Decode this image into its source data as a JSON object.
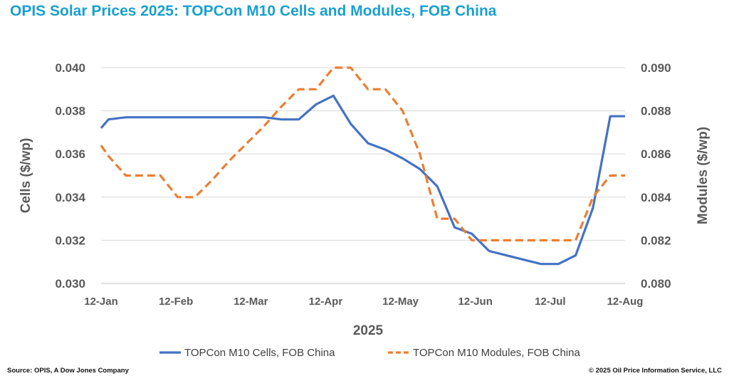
{
  "title": "OPIS Solar Prices 2025: TOPCon M10 Cells and Modules, FOB China",
  "footer": {
    "source": "Source: OPIS, A Dow Jones Company",
    "copyright": "© 2025 Oil Price Information Service, LLC"
  },
  "chart_data": {
    "type": "line",
    "title": "OPIS Solar Prices 2025: TOPCon M10 Cells and Modules, FOB China",
    "xlabel": "2025",
    "ylabel": "Cells ($/wp)",
    "y2label": "Modules ($/wp)",
    "x_ticks": [
      "12-Jan",
      "12-Feb",
      "12-Mar",
      "12-Apr",
      "12-May",
      "12-Jun",
      "12-Jul",
      "12-Aug"
    ],
    "y_ticks": [
      "0.030",
      "0.032",
      "0.034",
      "0.036",
      "0.038",
      "0.040"
    ],
    "y2_ticks": [
      "0.080",
      "0.082",
      "0.084",
      "0.086",
      "0.088",
      "0.090"
    ],
    "ylim": [
      0.03,
      0.04
    ],
    "y2lim": [
      0.08,
      0.09
    ],
    "xlim": [
      "2025-01-12",
      "2025-08-12"
    ],
    "grid": true,
    "legend_position": "bottom",
    "colors": {
      "cells": "#4472c4",
      "modules": "#ed7d31"
    },
    "series": [
      {
        "name": "TOPCon M10 Cells, FOB China",
        "axis": "left",
        "style": "solid",
        "x": [
          "2025-01-12",
          "2025-01-15",
          "2025-01-22",
          "2025-01-29",
          "2025-02-05",
          "2025-02-12",
          "2025-02-19",
          "2025-02-26",
          "2025-03-05",
          "2025-03-12",
          "2025-03-19",
          "2025-03-26",
          "2025-04-02",
          "2025-04-09",
          "2025-04-16",
          "2025-04-23",
          "2025-04-30",
          "2025-05-07",
          "2025-05-14",
          "2025-05-21",
          "2025-05-28",
          "2025-06-04",
          "2025-06-11",
          "2025-06-18",
          "2025-06-25",
          "2025-07-02",
          "2025-07-09",
          "2025-07-16",
          "2025-07-23",
          "2025-07-30",
          "2025-08-06",
          "2025-08-12"
        ],
        "values": [
          0.0372,
          0.0376,
          0.0377,
          0.0377,
          0.0377,
          0.0377,
          0.0377,
          0.0377,
          0.0377,
          0.0377,
          0.0377,
          0.0376,
          0.0376,
          0.0383,
          0.0387,
          0.0374,
          0.0365,
          0.0362,
          0.0358,
          0.0353,
          0.0345,
          0.0326,
          0.0323,
          0.0315,
          0.0313,
          0.0311,
          0.0309,
          0.0309,
          0.0313,
          0.0335,
          0.03775,
          0.03775
        ]
      },
      {
        "name": "TOPCon M10 Modules, FOB China",
        "axis": "right",
        "style": "dashed",
        "x": [
          "2025-01-12",
          "2025-01-15",
          "2025-01-22",
          "2025-01-29",
          "2025-02-05",
          "2025-02-12",
          "2025-02-19",
          "2025-02-26",
          "2025-03-05",
          "2025-03-12",
          "2025-03-19",
          "2025-03-26",
          "2025-04-02",
          "2025-04-09",
          "2025-04-16",
          "2025-04-23",
          "2025-04-30",
          "2025-05-07",
          "2025-05-14",
          "2025-05-21",
          "2025-05-28",
          "2025-06-04",
          "2025-06-11",
          "2025-06-18",
          "2025-06-25",
          "2025-07-02",
          "2025-07-09",
          "2025-07-16",
          "2025-07-23",
          "2025-07-30",
          "2025-08-06",
          "2025-08-12"
        ],
        "values": [
          0.0864,
          0.0859,
          0.085,
          0.085,
          0.085,
          0.084,
          0.084,
          0.0848,
          0.0857,
          0.0865,
          0.0873,
          0.0882,
          0.089,
          0.089,
          0.09,
          0.09,
          0.089,
          0.089,
          0.088,
          0.086,
          0.083,
          0.083,
          0.082,
          0.082,
          0.082,
          0.082,
          0.082,
          0.082,
          0.082,
          0.084,
          0.085,
          0.085
        ]
      }
    ]
  }
}
